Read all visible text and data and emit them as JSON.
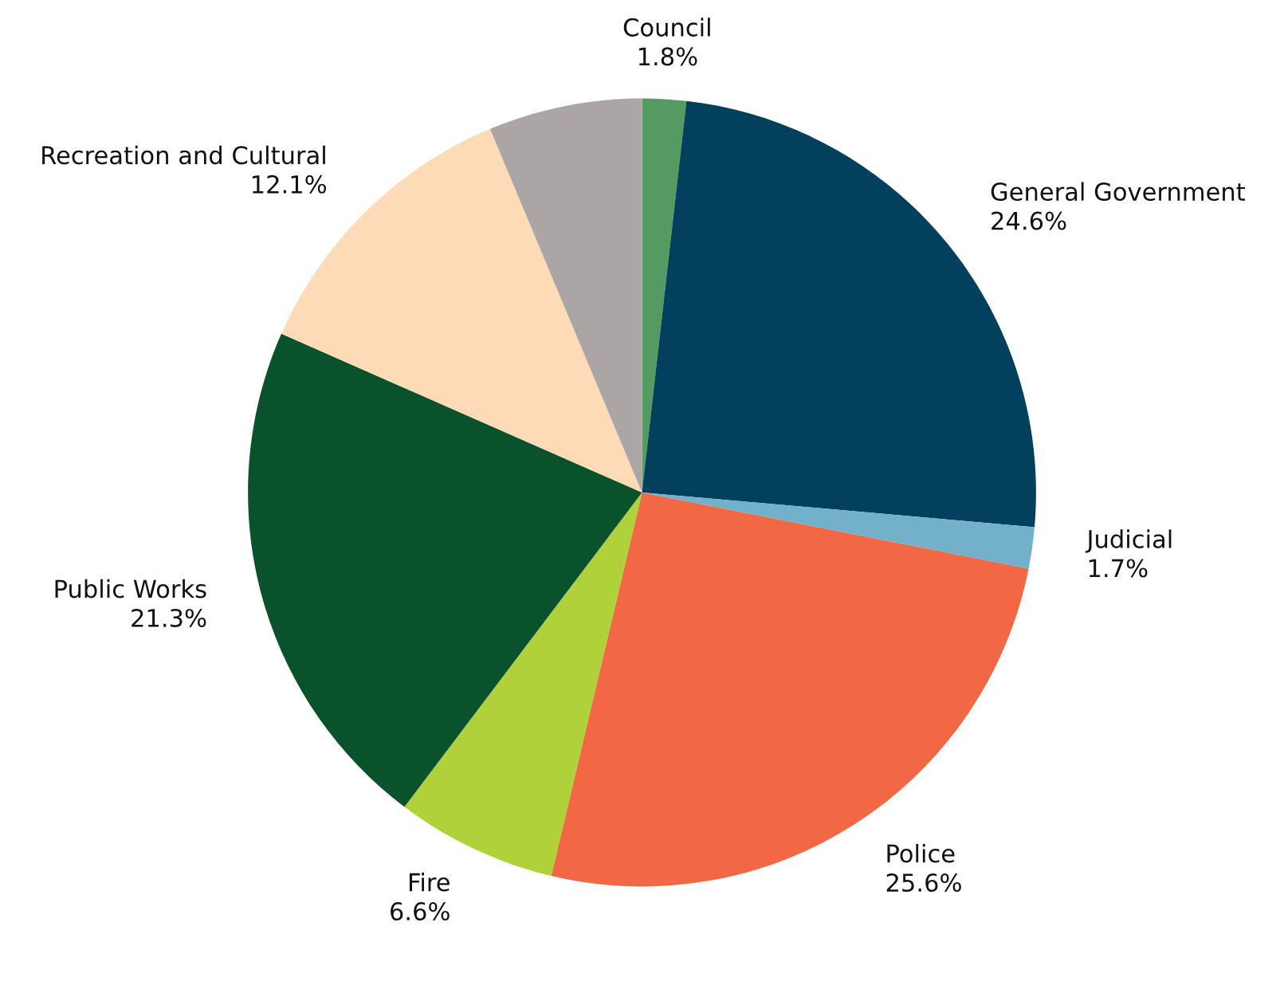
{
  "chart_data": {
    "type": "pie",
    "categories": [
      "Council",
      "General Government",
      "Judicial",
      "Police",
      "Fire",
      "Public Works",
      "Recreation and Cultural",
      null
    ],
    "values": [
      1.8,
      24.6,
      1.7,
      25.6,
      6.6,
      21.3,
      12.1,
      6.3
    ],
    "value_labels": [
      "1.8%",
      "24.6%",
      "1.7%",
      "25.6%",
      "6.6%",
      "21.3%",
      "12.1%",
      null
    ],
    "colors": [
      "#559a62",
      "#02405e",
      "#72b1c9",
      "#f26744",
      "#afd13a",
      "#09522c",
      "#fddbb7",
      "#aba5a5"
    ]
  }
}
